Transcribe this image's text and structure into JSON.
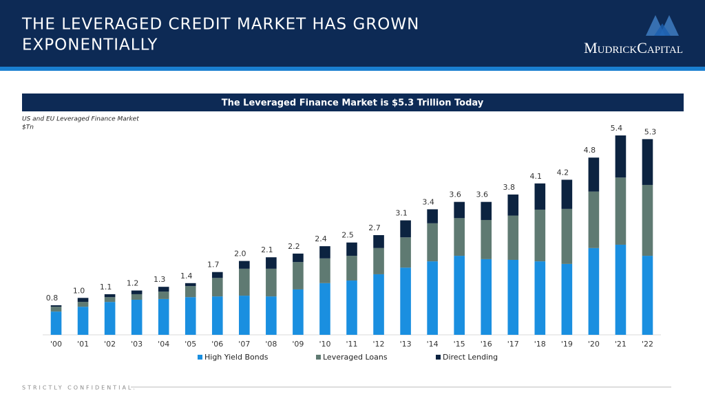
{
  "header": {
    "title_line1": "THE LEVERAGED CREDIT MARKET HAS GROWN",
    "title_line2": "EXPONENTIALLY",
    "logo": "MudrickCapital"
  },
  "footer": "STRICTLY CONFIDENTIAL.",
  "chart_data": {
    "type": "bar",
    "stacked": true,
    "title": "The Leveraged Finance Market is $5.3 Trillion Today",
    "subtitle": "US and EU Leveraged Finance Market",
    "unit": "$Tn",
    "categories": [
      "'00",
      "'01",
      "'02",
      "'03",
      "'04",
      "'05",
      "'06",
      "'07",
      "'08",
      "'09",
      "'10",
      "'11",
      "'12",
      "'13",
      "'14",
      "'15",
      "'16",
      "'17",
      "'18",
      "'19",
      "'20",
      "'21",
      "'22"
    ],
    "series": [
      {
        "name": "High Yield Bonds",
        "color": "#1a8fe0",
        "values": [
          0.63,
          0.76,
          0.89,
          0.95,
          0.97,
          1.02,
          1.04,
          1.06,
          1.04,
          1.23,
          1.4,
          1.47,
          1.64,
          1.82,
          1.99,
          2.14,
          2.05,
          2.03,
          1.99,
          1.92,
          2.35,
          2.44,
          2.14
        ]
      },
      {
        "name": "Leveraged Loans",
        "color": "#5f7a72",
        "values": [
          0.13,
          0.13,
          0.13,
          0.15,
          0.2,
          0.3,
          0.5,
          0.73,
          0.75,
          0.74,
          0.67,
          0.67,
          0.71,
          0.82,
          1.03,
          1.02,
          1.06,
          1.2,
          1.4,
          1.49,
          1.53,
          1.82,
          1.92
        ]
      },
      {
        "name": "Direct Lending",
        "color": "#0c2340",
        "values": [
          0.04,
          0.11,
          0.08,
          0.1,
          0.13,
          0.08,
          0.16,
          0.21,
          0.31,
          0.23,
          0.33,
          0.36,
          0.35,
          0.46,
          0.38,
          0.44,
          0.49,
          0.57,
          0.71,
          0.79,
          0.92,
          1.14,
          1.24
        ]
      }
    ],
    "totals": {
      "values": [
        0.8,
        1.0,
        1.1,
        1.2,
        1.3,
        1.4,
        1.7,
        2.0,
        2.1,
        2.2,
        2.4,
        2.5,
        2.7,
        3.1,
        3.4,
        3.6,
        3.6,
        3.8,
        4.1,
        4.2,
        4.8,
        5.4,
        5.3
      ],
      "value_labels": [
        "0.8",
        "1.0",
        "1.1",
        "1.2",
        "1.3",
        "1.4",
        "1.7",
        "2.0",
        "2.1",
        "2.2",
        "2.4",
        "2.5",
        "2.7",
        "3.1",
        "3.4",
        "3.6",
        "3.6",
        "3.8",
        "4.1",
        "4.2",
        "4.8",
        "5.4",
        "5.3"
      ]
    },
    "ylim": [
      0,
      5.4
    ],
    "legend": "bottom"
  }
}
